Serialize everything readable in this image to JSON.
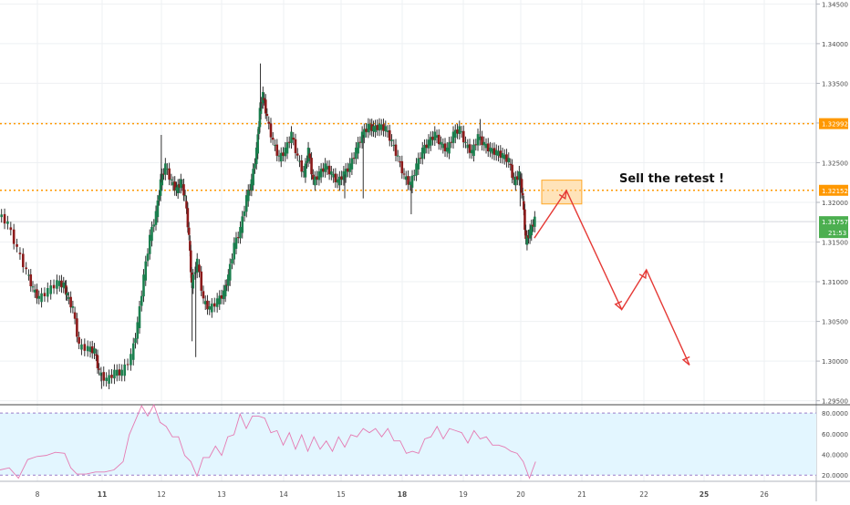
{
  "chart_data": [
    {
      "type": "candlestick",
      "title": "",
      "annotation": "Sell the retest !",
      "x_ticks": [
        "8",
        "11",
        "12",
        "13",
        "14",
        "15",
        "18",
        "19",
        "20",
        "21",
        "22",
        "25",
        "26"
      ],
      "y_ticks": [
        "1.34500",
        "1.34000",
        "1.33500",
        "1.33000",
        "1.32500",
        "1.32000",
        "1.31500",
        "1.31000",
        "1.30500",
        "1.30000",
        "1.29500"
      ],
      "ylim": [
        1.2945,
        1.3455
      ],
      "horizontal_levels": [
        {
          "value": 1.32992,
          "label": "1.32992",
          "color": "#ff9800",
          "style": "dotted"
        },
        {
          "value": 1.32152,
          "label": "1.32152",
          "color": "#ff9800",
          "style": "dotted"
        }
      ],
      "current_price": {
        "value": 1.31757,
        "label": "1.31757",
        "countdown": "21:53",
        "color": "#4caf50"
      },
      "price_path": [
        [
          0,
          1.3185
        ],
        [
          0.15,
          1.3172
        ],
        [
          0.3,
          1.314
        ],
        [
          0.45,
          1.3112
        ],
        [
          0.55,
          1.309
        ],
        [
          0.65,
          1.3078
        ],
        [
          0.8,
          1.3088
        ],
        [
          0.95,
          1.3098
        ],
        [
          1.05,
          1.3095
        ],
        [
          1.1,
          1.3082
        ],
        [
          1.2,
          1.3065
        ],
        [
          1.3,
          1.3018
        ],
        [
          1.45,
          1.3015
        ],
        [
          1.55,
          1.3012
        ],
        [
          1.62,
          1.2985
        ],
        [
          1.75,
          1.2975
        ],
        [
          1.88,
          1.2985
        ],
        [
          2.0,
          1.2985
        ],
        [
          2.15,
          1.3005
        ],
        [
          2.25,
          1.3045
        ],
        [
          2.35,
          1.3105
        ],
        [
          2.45,
          1.3155
        ],
        [
          2.55,
          1.3185
        ],
        [
          2.62,
          1.3225
        ],
        [
          2.7,
          1.3245
        ],
        [
          2.8,
          1.3225
        ],
        [
          2.88,
          1.3215
        ],
        [
          2.95,
          1.3225
        ],
        [
          3.02,
          1.3205
        ],
        [
          3.08,
          1.3155
        ],
        [
          3.12,
          1.3095
        ],
        [
          3.22,
          1.3125
        ],
        [
          3.32,
          1.3075
        ],
        [
          3.42,
          1.3065
        ],
        [
          3.55,
          1.3075
        ],
        [
          3.65,
          1.3085
        ],
        [
          3.72,
          1.3105
        ],
        [
          3.82,
          1.3145
        ],
        [
          3.92,
          1.3165
        ],
        [
          4.02,
          1.3205
        ],
        [
          4.1,
          1.3225
        ],
        [
          4.18,
          1.3265
        ],
        [
          4.23,
          1.3315
        ],
        [
          4.28,
          1.3335
        ],
        [
          4.35,
          1.3305
        ],
        [
          4.45,
          1.3275
        ],
        [
          4.55,
          1.3255
        ],
        [
          4.65,
          1.3265
        ],
        [
          4.75,
          1.3285
        ],
        [
          4.85,
          1.3255
        ],
        [
          4.95,
          1.3235
        ],
        [
          5.02,
          1.3265
        ],
        [
          5.1,
          1.3225
        ],
        [
          5.2,
          1.3235
        ],
        [
          5.3,
          1.3245
        ],
        [
          5.4,
          1.3235
        ],
        [
          5.5,
          1.3225
        ],
        [
          5.6,
          1.3235
        ],
        [
          5.7,
          1.3245
        ],
        [
          5.8,
          1.3265
        ],
        [
          5.9,
          1.3285
        ],
        [
          6.0,
          1.3295
        ],
        [
          6.08,
          1.3292
        ],
        [
          6.18,
          1.3295
        ],
        [
          6.28,
          1.3292
        ],
        [
          6.38,
          1.3275
        ],
        [
          6.48,
          1.3255
        ],
        [
          6.58,
          1.3232
        ],
        [
          6.68,
          1.3222
        ],
        [
          6.78,
          1.3245
        ],
        [
          6.88,
          1.3265
        ],
        [
          6.98,
          1.3275
        ],
        [
          7.08,
          1.3285
        ],
        [
          7.18,
          1.3272
        ],
        [
          7.28,
          1.3265
        ],
        [
          7.38,
          1.3285
        ],
        [
          7.48,
          1.3292
        ],
        [
          7.58,
          1.3272
        ],
        [
          7.68,
          1.3262
        ],
        [
          7.78,
          1.3282
        ],
        [
          7.88,
          1.3272
        ],
        [
          7.98,
          1.3265
        ],
        [
          8.08,
          1.3262
        ],
        [
          8.18,
          1.3258
        ],
        [
          8.28,
          1.3252
        ],
        [
          8.36,
          1.3225
        ],
        [
          8.45,
          1.3235
        ],
        [
          8.5,
          1.3205
        ],
        [
          8.55,
          1.315
        ],
        [
          8.62,
          1.3162
        ],
        [
          8.7,
          1.3178
        ]
      ],
      "wicks": [
        [
          3.12,
          1.3025
        ],
        [
          3.18,
          1.3005
        ],
        [
          4.23,
          1.3375
        ],
        [
          2.62,
          1.3285
        ],
        [
          1.65,
          1.2965
        ],
        [
          6.68,
          1.3185
        ],
        [
          7.8,
          1.3305
        ],
        [
          5.6,
          1.3205
        ],
        [
          5.9,
          1.3205
        ],
        [
          8.45,
          1.3195
        ]
      ],
      "projection": [
        [
          8.68,
          1.3155
        ],
        [
          9.2,
          1.3215
        ],
        [
          10.1,
          1.3065
        ],
        [
          10.5,
          1.3115
        ],
        [
          11.2,
          1.2995
        ]
      ],
      "retest_zone": {
        "x": [
          8.8,
          9.45
        ],
        "y": [
          1.3198,
          1.3228
        ]
      }
    },
    {
      "type": "line",
      "title": "",
      "y_ticks": [
        "80.0000",
        "60.0000",
        "40.0000",
        "20.0000"
      ],
      "ylim": [
        14,
        88
      ],
      "bands": [
        20,
        80
      ],
      "series": [
        {
          "color": "#e57ab2",
          "values": [
            [
              0,
              28
            ],
            [
              0.15,
              24
            ],
            [
              0.3,
              20
            ],
            [
              0.45,
              32
            ],
            [
              0.6,
              41
            ],
            [
              0.75,
              36
            ],
            [
              0.9,
              45
            ],
            [
              1.05,
              38
            ],
            [
              1.15,
              30
            ],
            [
              1.25,
              18
            ],
            [
              1.4,
              24
            ],
            [
              1.55,
              20
            ],
            [
              1.7,
              26
            ],
            [
              1.85,
              22
            ],
            [
              2.0,
              36
            ],
            [
              2.1,
              56
            ],
            [
              2.2,
              76
            ],
            [
              2.3,
              84
            ],
            [
              2.4,
              80
            ],
            [
              2.5,
              86
            ],
            [
              2.6,
              74
            ],
            [
              2.7,
              64
            ],
            [
              2.8,
              60
            ],
            [
              2.9,
              54
            ],
            [
              3.0,
              42
            ],
            [
              3.1,
              30
            ],
            [
              3.2,
              22
            ],
            [
              3.3,
              34
            ],
            [
              3.4,
              40
            ],
            [
              3.5,
              45
            ],
            [
              3.6,
              42
            ],
            [
              3.7,
              54
            ],
            [
              3.8,
              62
            ],
            [
              3.9,
              76
            ],
            [
              4.0,
              68
            ],
            [
              4.1,
              74
            ],
            [
              4.2,
              80
            ],
            [
              4.3,
              72
            ],
            [
              4.4,
              64
            ],
            [
              4.5,
              60
            ],
            [
              4.6,
              52
            ],
            [
              4.7,
              58
            ],
            [
              4.8,
              48
            ],
            [
              4.9,
              56
            ],
            [
              5.0,
              46
            ],
            [
              5.1,
              54
            ],
            [
              5.2,
              48
            ],
            [
              5.3,
              50
            ],
            [
              5.4,
              46
            ],
            [
              5.5,
              54
            ],
            [
              5.6,
              50
            ],
            [
              5.7,
              56
            ],
            [
              5.8,
              60
            ],
            [
              5.9,
              62
            ],
            [
              6.0,
              64
            ],
            [
              6.1,
              62
            ],
            [
              6.2,
              60
            ],
            [
              6.3,
              62
            ],
            [
              6.4,
              56
            ],
            [
              6.5,
              50
            ],
            [
              6.6,
              44
            ],
            [
              6.7,
              40
            ],
            [
              6.8,
              44
            ],
            [
              6.9,
              52
            ],
            [
              7.0,
              60
            ],
            [
              7.1,
              64
            ],
            [
              7.2,
              58
            ],
            [
              7.3,
              62
            ],
            [
              7.4,
              66
            ],
            [
              7.5,
              58
            ],
            [
              7.6,
              54
            ],
            [
              7.7,
              60
            ],
            [
              7.8,
              58
            ],
            [
              7.9,
              54
            ],
            [
              8.0,
              52
            ],
            [
              8.1,
              46
            ],
            [
              8.2,
              50
            ],
            [
              8.3,
              40
            ],
            [
              8.4,
              44
            ],
            [
              8.5,
              30
            ],
            [
              8.6,
              20
            ],
            [
              8.7,
              30
            ]
          ]
        }
      ]
    }
  ]
}
